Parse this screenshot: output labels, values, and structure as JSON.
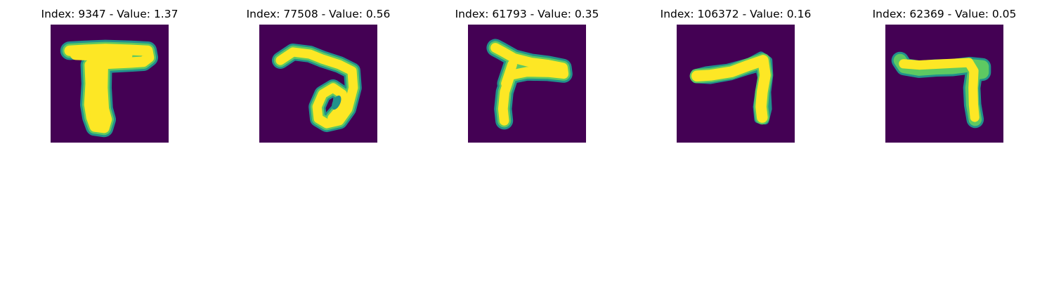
{
  "colors": {
    "background": "#440154",
    "foreground": "#fde725",
    "edge_mid": "#21918c",
    "edge_light": "#5ec962"
  },
  "panels": [
    {
      "index": "9347",
      "value": "1.37",
      "title": "Index: 9347 - Value: 1.37",
      "glyph": "digit-stroke-t-shape"
    },
    {
      "index": "77508",
      "value": "0.56",
      "title": "Index: 77508 - Value: 0.56",
      "glyph": "digit-stroke-loop"
    },
    {
      "index": "61793",
      "value": "0.35",
      "title": "Index: 61793 - Value: 0.35",
      "glyph": "digit-stroke-t-shape"
    },
    {
      "index": "106372",
      "value": "0.16",
      "title": "Index: 106372 - Value: 0.16",
      "glyph": "digit-stroke-seven"
    },
    {
      "index": "62369",
      "value": "0.05",
      "title": "Index: 62369 - Value: 0.05",
      "glyph": "digit-stroke-seven"
    }
  ]
}
